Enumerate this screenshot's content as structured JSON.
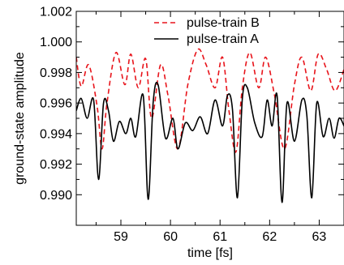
{
  "chart_data": {
    "type": "line",
    "title": "",
    "xlabel": "time [fs]",
    "ylabel": "ground-state amplitude",
    "xlim": [
      58.1,
      63.5
    ],
    "ylim": [
      0.988,
      1.002
    ],
    "x_ticks": [
      59,
      60,
      61,
      62,
      63
    ],
    "x_tick_labels": [
      "59",
      "60",
      "61",
      "62",
      "63"
    ],
    "y_ticks": [
      0.99,
      0.992,
      0.994,
      0.996,
      0.998,
      1.0,
      1.002
    ],
    "y_tick_labels": [
      "0.990",
      "0.992",
      "0.994",
      "0.996",
      "0.998",
      "1.000",
      "1.002"
    ],
    "grid": false,
    "legend_position": "top-right",
    "series": [
      {
        "name": "pulse-train B",
        "color": "#e8141b",
        "line_style": "dashed",
        "x": [
          58.1,
          58.2,
          58.35,
          58.52,
          58.62,
          58.72,
          58.9,
          59.08,
          59.2,
          59.35,
          59.5,
          59.62,
          59.8,
          59.95,
          60.15,
          60.35,
          60.55,
          60.72,
          60.9,
          61.05,
          61.18,
          61.32,
          61.45,
          61.6,
          61.78,
          61.92,
          62.1,
          62.3,
          62.5,
          62.65,
          62.83,
          62.98,
          63.15,
          63.32,
          63.5
        ],
        "values": [
          0.999,
          0.9971,
          0.9985,
          0.9958,
          0.993,
          0.996,
          0.9993,
          0.9972,
          0.9992,
          0.997,
          0.9989,
          0.995,
          0.9985,
          0.9965,
          0.993,
          0.9972,
          0.9995,
          0.9985,
          0.997,
          0.999,
          0.9955,
          0.9928,
          0.997,
          0.9993,
          0.997,
          0.999,
          0.9965,
          0.993,
          0.9972,
          0.999,
          0.9968,
          0.9992,
          0.9982,
          0.9968,
          0.9982
        ]
      },
      {
        "name": "pulse-train A",
        "color": "#000000",
        "line_style": "solid",
        "x": [
          58.1,
          58.2,
          58.32,
          58.45,
          58.55,
          58.65,
          58.75,
          58.85,
          58.97,
          59.1,
          59.2,
          59.3,
          59.45,
          59.55,
          59.65,
          59.75,
          59.9,
          60.05,
          60.15,
          60.3,
          60.45,
          60.6,
          60.75,
          60.9,
          61.05,
          61.15,
          61.25,
          61.35,
          61.45,
          61.55,
          61.7,
          61.85,
          61.95,
          62.05,
          62.15,
          62.25,
          62.35,
          62.5,
          62.65,
          62.75,
          62.85,
          62.95,
          63.08,
          63.2,
          63.3,
          63.4,
          63.5
        ],
        "values": [
          0.9955,
          0.9963,
          0.995,
          0.9962,
          0.991,
          0.996,
          0.9955,
          0.9935,
          0.9948,
          0.994,
          0.995,
          0.9938,
          0.9965,
          0.9897,
          0.996,
          0.9972,
          0.9937,
          0.995,
          0.993,
          0.9947,
          0.9942,
          0.9951,
          0.994,
          0.9962,
          0.9945,
          0.9965,
          0.9956,
          0.9898,
          0.9963,
          0.997,
          0.9947,
          0.9938,
          0.9962,
          0.9945,
          0.9965,
          0.9895,
          0.996,
          0.9935,
          0.9962,
          0.9952,
          0.9898,
          0.996,
          0.9938,
          0.995,
          0.9937,
          0.995,
          0.9945
        ]
      }
    ]
  }
}
